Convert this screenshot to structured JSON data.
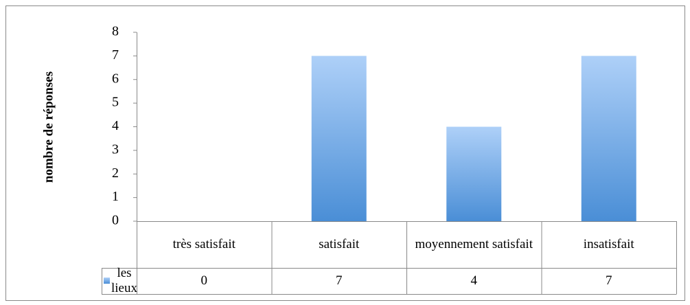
{
  "chart_data": {
    "type": "bar",
    "y_label": "nombre de réponses",
    "categories": [
      "très satisfait",
      "satisfait",
      "moyennement satisfait",
      "insatisfait"
    ],
    "series": [
      {
        "name": "les lieux",
        "color": "#4a8ed6",
        "values": [
          0,
          7,
          4,
          7
        ]
      }
    ],
    "ylim": [
      0,
      8
    ],
    "yticks": [
      0,
      1,
      2,
      3,
      4,
      5,
      6,
      7,
      8
    ],
    "grid": false
  }
}
